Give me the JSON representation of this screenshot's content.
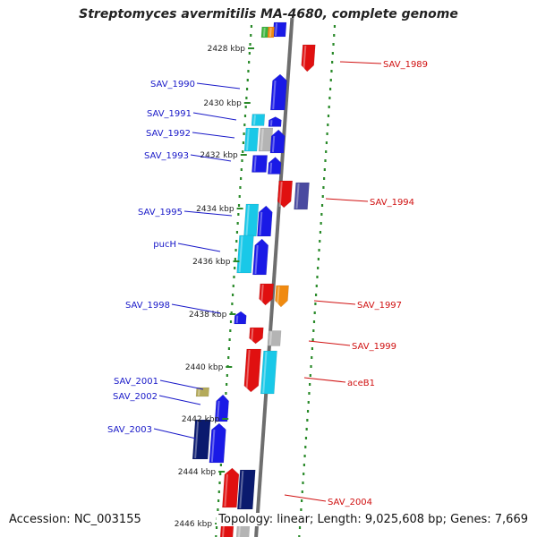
{
  "title": "Streptomyces avermitilis MA-4680, complete genome",
  "footer": {
    "accession": "Accession: NC_003155",
    "summary": "Topology: linear; Length: 9,025,608 bp; Genes: 7,669"
  },
  "scale_labels": [
    "2428 kbp",
    "2430 kbp",
    "2432 kbp",
    "2434 kbp",
    "2436 kbp",
    "2438 kbp",
    "2440 kbp",
    "2442 kbp",
    "2444 kbp",
    "2446 kbp"
  ],
  "genes_left": [
    "SAV_1990",
    "SAV_1991",
    "SAV_1992",
    "SAV_1993",
    "SAV_1995",
    "pucH",
    "SAV_1998",
    "SAV_2001",
    "SAV_2002",
    "SAV_2003"
  ],
  "genes_right": [
    "SAV_1989",
    "SAV_1994",
    "SAV_1997",
    "SAV_1999",
    "aceB1",
    "SAV_2004"
  ],
  "colors": {
    "forward_label": "#1818c8",
    "reverse_label": "#d01010",
    "blue": "#1a1ae6",
    "cyan": "#19c8e8",
    "navy": "#0a1a6e",
    "red": "#e01010",
    "orange": "#f08a10",
    "purple": "#4a4aa0",
    "gray": "#b4b4b4",
    "olive": "#b4aa5a",
    "green": "#3cb43c",
    "axis": "#6e6e6e",
    "tick": "#2a8a2a"
  }
}
